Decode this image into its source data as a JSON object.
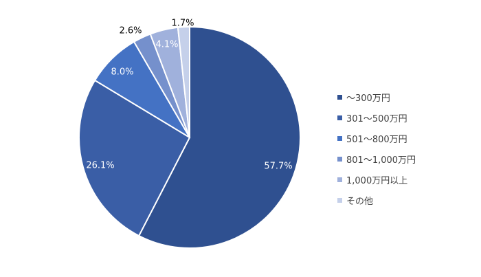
{
  "chart_data": {
    "type": "pie",
    "categories": [
      "〜300万円",
      "301〜500万円",
      "501〜800万円",
      "801〜1,000万円",
      "1,000万円以上",
      "その他"
    ],
    "values": [
      57.7,
      26.1,
      8.0,
      2.6,
      4.1,
      1.7
    ],
    "data_labels": [
      "57.7%",
      "26.1%",
      "8.0%",
      "2.6%",
      "4.1%",
      "1.7%"
    ],
    "colors": [
      "#2f5090",
      "#3a5ea6",
      "#4472c4",
      "#7590cc",
      "#a0b1dc",
      "#c5d0ea"
    ],
    "label_colors": [
      "#ffffff",
      "#ffffff",
      "#ffffff",
      "#000000",
      "#ffffff",
      "#000000"
    ],
    "start_angle_deg": 0,
    "direction": "clockwise",
    "legend_position": "right"
  }
}
